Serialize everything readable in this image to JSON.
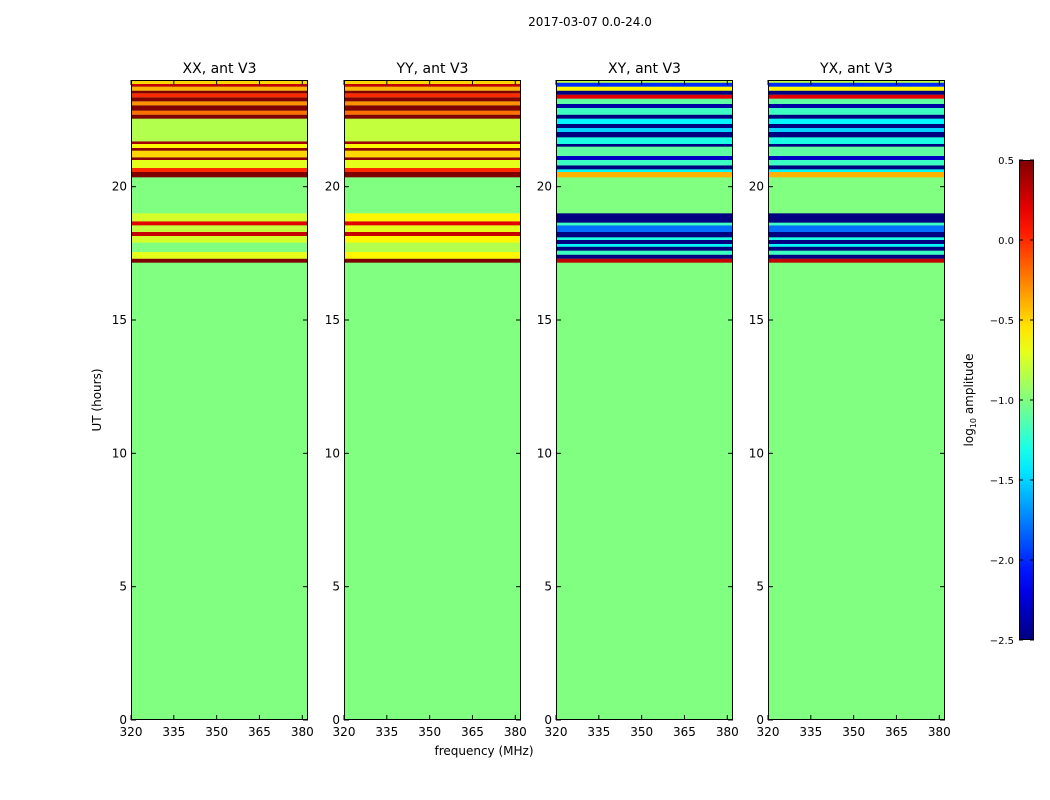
{
  "chart_data": {
    "type": "heatmap",
    "suptitle": "2017-03-07 0.0-24.0",
    "xlabel": "frequency (MHz)",
    "ylabel": "UT (hours)",
    "xlim": [
      320,
      382
    ],
    "ylim": [
      0,
      24
    ],
    "x_ticks": [
      320,
      335,
      350,
      365,
      380
    ],
    "y_ticks": [
      0,
      5,
      10,
      15,
      20
    ],
    "panels": [
      {
        "title": "XX, ant V3",
        "background_log_amp": -1.0,
        "bands": [
          {
            "t0": 17.15,
            "t1": 17.3,
            "v": 0.5
          },
          {
            "t0": 17.3,
            "t1": 17.55,
            "v": -0.7
          },
          {
            "t0": 17.55,
            "t1": 17.9,
            "v": -1.0
          },
          {
            "t0": 17.9,
            "t1": 18.15,
            "v": -0.75
          },
          {
            "t0": 18.15,
            "t1": 18.3,
            "v": 0.3
          },
          {
            "t0": 18.3,
            "t1": 18.55,
            "v": -0.8
          },
          {
            "t0": 18.55,
            "t1": 18.7,
            "v": 0.2
          },
          {
            "t0": 18.7,
            "t1": 19.0,
            "v": -0.75
          },
          {
            "t0": 20.35,
            "t1": 20.55,
            "v": 0.5
          },
          {
            "t0": 20.55,
            "t1": 20.7,
            "v": 0.0
          },
          {
            "t0": 20.7,
            "t1": 21.0,
            "v": -0.7
          },
          {
            "t0": 21.0,
            "t1": 21.1,
            "v": 0.45
          },
          {
            "t0": 21.1,
            "t1": 21.35,
            "v": -0.5
          },
          {
            "t0": 21.35,
            "t1": 21.45,
            "v": 0.45
          },
          {
            "t0": 21.45,
            "t1": 21.6,
            "v": -0.6
          },
          {
            "t0": 21.6,
            "t1": 21.7,
            "v": 0.4
          },
          {
            "t0": 21.7,
            "t1": 22.55,
            "v": -0.85
          },
          {
            "t0": 22.55,
            "t1": 22.7,
            "v": 0.5
          },
          {
            "t0": 22.7,
            "t1": 22.85,
            "v": -0.2
          },
          {
            "t0": 22.85,
            "t1": 23.05,
            "v": 0.5
          },
          {
            "t0": 23.05,
            "t1": 23.2,
            "v": -0.3
          },
          {
            "t0": 23.2,
            "t1": 23.35,
            "v": 0.5
          },
          {
            "t0": 23.35,
            "t1": 23.5,
            "v": 0.0
          },
          {
            "t0": 23.5,
            "t1": 23.6,
            "v": 0.5
          },
          {
            "t0": 23.6,
            "t1": 23.75,
            "v": -0.4
          },
          {
            "t0": 23.75,
            "t1": 23.85,
            "v": 0.3
          },
          {
            "t0": 23.85,
            "t1": 24.0,
            "v": -0.5
          }
        ]
      },
      {
        "title": "YY, ant V3",
        "background_log_amp": -1.0,
        "bands": [
          {
            "t0": 17.15,
            "t1": 17.3,
            "v": 0.5
          },
          {
            "t0": 17.3,
            "t1": 17.55,
            "v": -0.6
          },
          {
            "t0": 17.55,
            "t1": 17.9,
            "v": -0.85
          },
          {
            "t0": 17.9,
            "t1": 18.15,
            "v": -0.6
          },
          {
            "t0": 18.15,
            "t1": 18.3,
            "v": 0.3
          },
          {
            "t0": 18.3,
            "t1": 18.55,
            "v": -0.7
          },
          {
            "t0": 18.55,
            "t1": 18.7,
            "v": 0.2
          },
          {
            "t0": 18.7,
            "t1": 19.0,
            "v": -0.6
          },
          {
            "t0": 20.35,
            "t1": 20.55,
            "v": 0.5
          },
          {
            "t0": 20.55,
            "t1": 20.7,
            "v": 0.0
          },
          {
            "t0": 20.7,
            "t1": 21.0,
            "v": -0.7
          },
          {
            "t0": 21.0,
            "t1": 21.1,
            "v": 0.45
          },
          {
            "t0": 21.1,
            "t1": 21.35,
            "v": -0.5
          },
          {
            "t0": 21.35,
            "t1": 21.45,
            "v": 0.45
          },
          {
            "t0": 21.45,
            "t1": 21.6,
            "v": -0.6
          },
          {
            "t0": 21.6,
            "t1": 21.7,
            "v": 0.4
          },
          {
            "t0": 21.7,
            "t1": 22.55,
            "v": -0.8
          },
          {
            "t0": 22.55,
            "t1": 22.7,
            "v": 0.5
          },
          {
            "t0": 22.7,
            "t1": 22.85,
            "v": -0.2
          },
          {
            "t0": 22.85,
            "t1": 23.05,
            "v": 0.5
          },
          {
            "t0": 23.05,
            "t1": 23.2,
            "v": -0.3
          },
          {
            "t0": 23.2,
            "t1": 23.35,
            "v": 0.5
          },
          {
            "t0": 23.35,
            "t1": 23.5,
            "v": 0.0
          },
          {
            "t0": 23.5,
            "t1": 23.6,
            "v": 0.5
          },
          {
            "t0": 23.6,
            "t1": 23.75,
            "v": -0.4
          },
          {
            "t0": 23.75,
            "t1": 23.85,
            "v": 0.3
          },
          {
            "t0": 23.85,
            "t1": 24.0,
            "v": -0.5
          }
        ]
      },
      {
        "title": "XY, ant V3",
        "background_log_amp": -1.0,
        "bands": [
          {
            "t0": 17.15,
            "t1": 17.3,
            "v": 0.3
          },
          {
            "t0": 17.3,
            "t1": 17.45,
            "v": -2.5
          },
          {
            "t0": 17.45,
            "t1": 17.6,
            "v": -1.2
          },
          {
            "t0": 17.6,
            "t1": 17.75,
            "v": -2.5
          },
          {
            "t0": 17.75,
            "t1": 17.85,
            "v": -1.4
          },
          {
            "t0": 17.85,
            "t1": 18.0,
            "v": -2.5
          },
          {
            "t0": 18.0,
            "t1": 18.1,
            "v": -1.3
          },
          {
            "t0": 18.1,
            "t1": 18.3,
            "v": -2.5
          },
          {
            "t0": 18.3,
            "t1": 18.55,
            "v": -1.8
          },
          {
            "t0": 18.55,
            "t1": 18.65,
            "v": -1.2
          },
          {
            "t0": 18.65,
            "t1": 19.0,
            "v": -2.5
          },
          {
            "t0": 20.35,
            "t1": 20.55,
            "v": -0.4
          },
          {
            "t0": 20.55,
            "t1": 20.65,
            "v": -1.4
          },
          {
            "t0": 20.65,
            "t1": 20.8,
            "v": -2.5
          },
          {
            "t0": 20.8,
            "t1": 21.0,
            "v": -1.2
          },
          {
            "t0": 21.0,
            "t1": 21.15,
            "v": -2.3
          },
          {
            "t0": 21.15,
            "t1": 21.5,
            "v": -1.1
          },
          {
            "t0": 21.5,
            "t1": 21.6,
            "v": -2.5
          },
          {
            "t0": 21.6,
            "t1": 21.85,
            "v": -1.3
          },
          {
            "t0": 21.85,
            "t1": 22.05,
            "v": -2.5
          },
          {
            "t0": 22.05,
            "t1": 22.2,
            "v": -1.5
          },
          {
            "t0": 22.2,
            "t1": 22.35,
            "v": -2.5
          },
          {
            "t0": 22.35,
            "t1": 22.55,
            "v": -1.4
          },
          {
            "t0": 22.55,
            "t1": 22.7,
            "v": -2.5
          },
          {
            "t0": 22.7,
            "t1": 22.95,
            "v": -1.2
          },
          {
            "t0": 22.95,
            "t1": 23.1,
            "v": -2.4
          },
          {
            "t0": 23.1,
            "t1": 23.3,
            "v": -1.1
          },
          {
            "t0": 23.3,
            "t1": 23.45,
            "v": 0.2
          },
          {
            "t0": 23.45,
            "t1": 23.6,
            "v": -2.5
          },
          {
            "t0": 23.6,
            "t1": 23.75,
            "v": -0.6
          },
          {
            "t0": 23.75,
            "t1": 23.9,
            "v": -2.0
          },
          {
            "t0": 23.9,
            "t1": 24.0,
            "v": -0.8
          }
        ]
      },
      {
        "title": "YX, ant V3",
        "background_log_amp": -1.0,
        "bands": [
          {
            "t0": 17.15,
            "t1": 17.3,
            "v": 0.3
          },
          {
            "t0": 17.3,
            "t1": 17.45,
            "v": -2.5
          },
          {
            "t0": 17.45,
            "t1": 17.6,
            "v": -1.2
          },
          {
            "t0": 17.6,
            "t1": 17.75,
            "v": -2.5
          },
          {
            "t0": 17.75,
            "t1": 17.85,
            "v": -1.4
          },
          {
            "t0": 17.85,
            "t1": 18.0,
            "v": -2.5
          },
          {
            "t0": 18.0,
            "t1": 18.1,
            "v": -1.3
          },
          {
            "t0": 18.1,
            "t1": 18.3,
            "v": -2.5
          },
          {
            "t0": 18.3,
            "t1": 18.55,
            "v": -1.8
          },
          {
            "t0": 18.55,
            "t1": 18.65,
            "v": -1.2
          },
          {
            "t0": 18.65,
            "t1": 19.0,
            "v": -2.5
          },
          {
            "t0": 20.35,
            "t1": 20.55,
            "v": -0.4
          },
          {
            "t0": 20.55,
            "t1": 20.65,
            "v": -1.4
          },
          {
            "t0": 20.65,
            "t1": 20.8,
            "v": -2.5
          },
          {
            "t0": 20.8,
            "t1": 21.0,
            "v": -1.2
          },
          {
            "t0": 21.0,
            "t1": 21.15,
            "v": -2.3
          },
          {
            "t0": 21.15,
            "t1": 21.5,
            "v": -1.1
          },
          {
            "t0": 21.5,
            "t1": 21.6,
            "v": -2.5
          },
          {
            "t0": 21.6,
            "t1": 21.85,
            "v": -1.3
          },
          {
            "t0": 21.85,
            "t1": 22.05,
            "v": -2.5
          },
          {
            "t0": 22.05,
            "t1": 22.2,
            "v": -1.5
          },
          {
            "t0": 22.2,
            "t1": 22.35,
            "v": -2.5
          },
          {
            "t0": 22.35,
            "t1": 22.55,
            "v": -1.4
          },
          {
            "t0": 22.55,
            "t1": 22.7,
            "v": -2.5
          },
          {
            "t0": 22.7,
            "t1": 22.95,
            "v": -1.2
          },
          {
            "t0": 22.95,
            "t1": 23.1,
            "v": -2.4
          },
          {
            "t0": 23.1,
            "t1": 23.3,
            "v": -1.1
          },
          {
            "t0": 23.3,
            "t1": 23.45,
            "v": 0.2
          },
          {
            "t0": 23.45,
            "t1": 23.6,
            "v": -2.5
          },
          {
            "t0": 23.6,
            "t1": 23.75,
            "v": -0.6
          },
          {
            "t0": 23.75,
            "t1": 23.9,
            "v": -2.0
          },
          {
            "t0": 23.9,
            "t1": 24.0,
            "v": -0.8
          }
        ]
      }
    ],
    "colorbar": {
      "label": "log10 amplitude",
      "label_main": "log",
      "label_sub": "10",
      "label_rest": " amplitude",
      "colormap": "jet",
      "range": [
        -2.5,
        0.5
      ],
      "ticks": [
        0.5,
        0.0,
        -0.5,
        -1.0,
        -1.5,
        -2.0,
        -2.5
      ],
      "tick_labels": [
        "0.5",
        "0.0",
        "−0.5",
        "−1.0",
        "−1.5",
        "−2.0",
        "−2.5"
      ]
    }
  }
}
